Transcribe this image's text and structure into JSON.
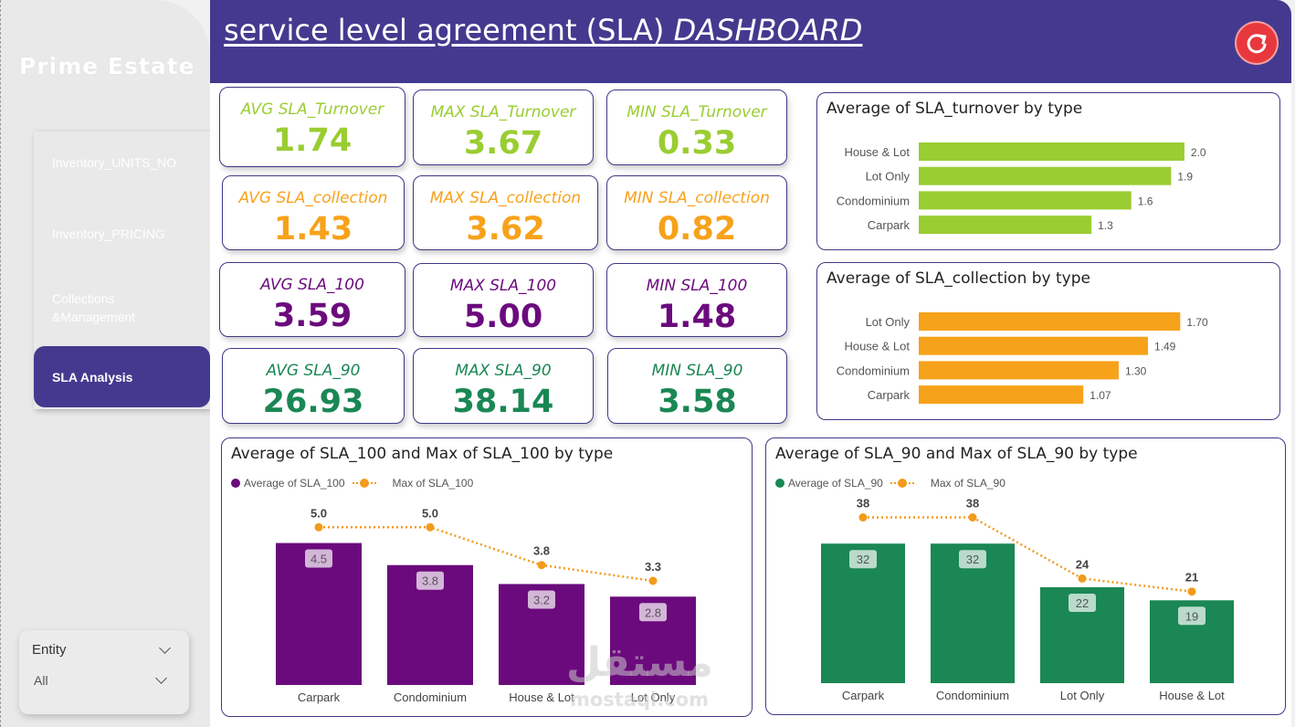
{
  "brand": "Prime Estate",
  "header": {
    "title_main": "service level agreement (SLA)",
    "title_emph": "DASHBOARD"
  },
  "nav": {
    "items": [
      {
        "label": "Inventory_UNITS_NO"
      },
      {
        "label": "Inventory_PRICING"
      },
      {
        "label": "Collections &Management"
      },
      {
        "label": "SLA Analysis"
      }
    ],
    "active": "SLA Analysis"
  },
  "slicer": {
    "title": "Entity",
    "value": "All"
  },
  "colors": {
    "header": "#433a8f",
    "turnover": "#9acd32",
    "collection": "#f7a21b",
    "sla100": "#6b0a7d",
    "sla90": "#1a8754",
    "max_line": "#f39b1b"
  },
  "kpis": [
    {
      "label": "AVG SLA_Turnover",
      "value": "1.74",
      "color": "#9acd32"
    },
    {
      "label": "MAX SLA_Turnover",
      "value": "3.67",
      "color": "#9acd32"
    },
    {
      "label": "MIN SLA_Turnover",
      "value": "0.33",
      "color": "#9acd32"
    },
    {
      "label": "AVG SLA_collection",
      "value": "1.43",
      "color": "#f7a21b"
    },
    {
      "label": "MAX SLA_collection",
      "value": "3.62",
      "color": "#f7a21b"
    },
    {
      "label": "MIN SLA_collection",
      "value": "0.82",
      "color": "#f7a21b"
    },
    {
      "label": "AVG SLA_100",
      "value": "3.59",
      "color": "#6b0a7d"
    },
    {
      "label": "MAX SLA_100",
      "value": "5.00",
      "color": "#6b0a7d"
    },
    {
      "label": "MIN SLA_100",
      "value": "1.48",
      "color": "#6b0a7d"
    },
    {
      "label": "AVG SLA_90",
      "value": "26.93",
      "color": "#1a8754"
    },
    {
      "label": "MAX SLA_90",
      "value": "38.14",
      "color": "#1a8754"
    },
    {
      "label": "MIN SLA_90",
      "value": "3.58",
      "color": "#1a8754"
    }
  ],
  "chart_data": [
    {
      "type": "bar",
      "orientation": "horizontal",
      "title": "Average of SLA_turnover by type",
      "categories": [
        "House & Lot",
        "Lot Only",
        "Condominium",
        "Carpark"
      ],
      "values": [
        2.0,
        1.9,
        1.6,
        1.3
      ],
      "value_labels": [
        "2.0",
        "1.9",
        "1.6",
        "1.3"
      ],
      "xlim": [
        0,
        2.2
      ],
      "color": "#9acd32"
    },
    {
      "type": "bar",
      "orientation": "horizontal",
      "title": "Average of SLA_collection by type",
      "categories": [
        "Lot Only",
        "House & Lot",
        "Condominium",
        "Carpark"
      ],
      "values": [
        1.7,
        1.49,
        1.3,
        1.07
      ],
      "value_labels": [
        "1.70",
        "1.49",
        "1.30",
        "1.07"
      ],
      "xlim": [
        0,
        1.9
      ],
      "color": "#f7a21b"
    },
    {
      "type": "bar",
      "title": "Average of SLA_100 and Max of SLA_100 by type",
      "categories": [
        "Carpark",
        "Condominium",
        "House & Lot",
        "Lot Only"
      ],
      "series": [
        {
          "name": "Average of SLA_100",
          "type": "bar",
          "values": [
            4.5,
            3.8,
            3.2,
            2.8
          ],
          "labels": [
            "4.5",
            "3.8",
            "3.2",
            "2.8"
          ],
          "color": "#6b0a7d"
        },
        {
          "name": "Max of SLA_100",
          "type": "line",
          "values": [
            5.0,
            5.0,
            3.8,
            3.3
          ],
          "labels": [
            "5.0",
            "5.0",
            "3.8",
            "3.3"
          ],
          "color": "#f39b1b"
        }
      ],
      "ylim": [
        0,
        5.5
      ],
      "legend": "top-left"
    },
    {
      "type": "bar",
      "title": "Average of SLA_90 and Max of SLA_90 by type",
      "categories": [
        "Carpark",
        "Condominium",
        "Lot Only",
        "House & Lot"
      ],
      "series": [
        {
          "name": "Average of SLA_90",
          "type": "bar",
          "values": [
            32,
            32,
            22,
            19
          ],
          "labels": [
            "32",
            "32",
            "22",
            "19"
          ],
          "color": "#1a8754"
        },
        {
          "name": "Max of SLA_90",
          "type": "line",
          "values": [
            38,
            38,
            24,
            21
          ],
          "labels": [
            "38",
            "38",
            "24",
            "21"
          ],
          "color": "#f39b1b"
        }
      ],
      "ylim": [
        0,
        40
      ],
      "legend": "top-left"
    }
  ],
  "watermark": {
    "arabic": "مستقل",
    "latin": "mostaql.com"
  }
}
